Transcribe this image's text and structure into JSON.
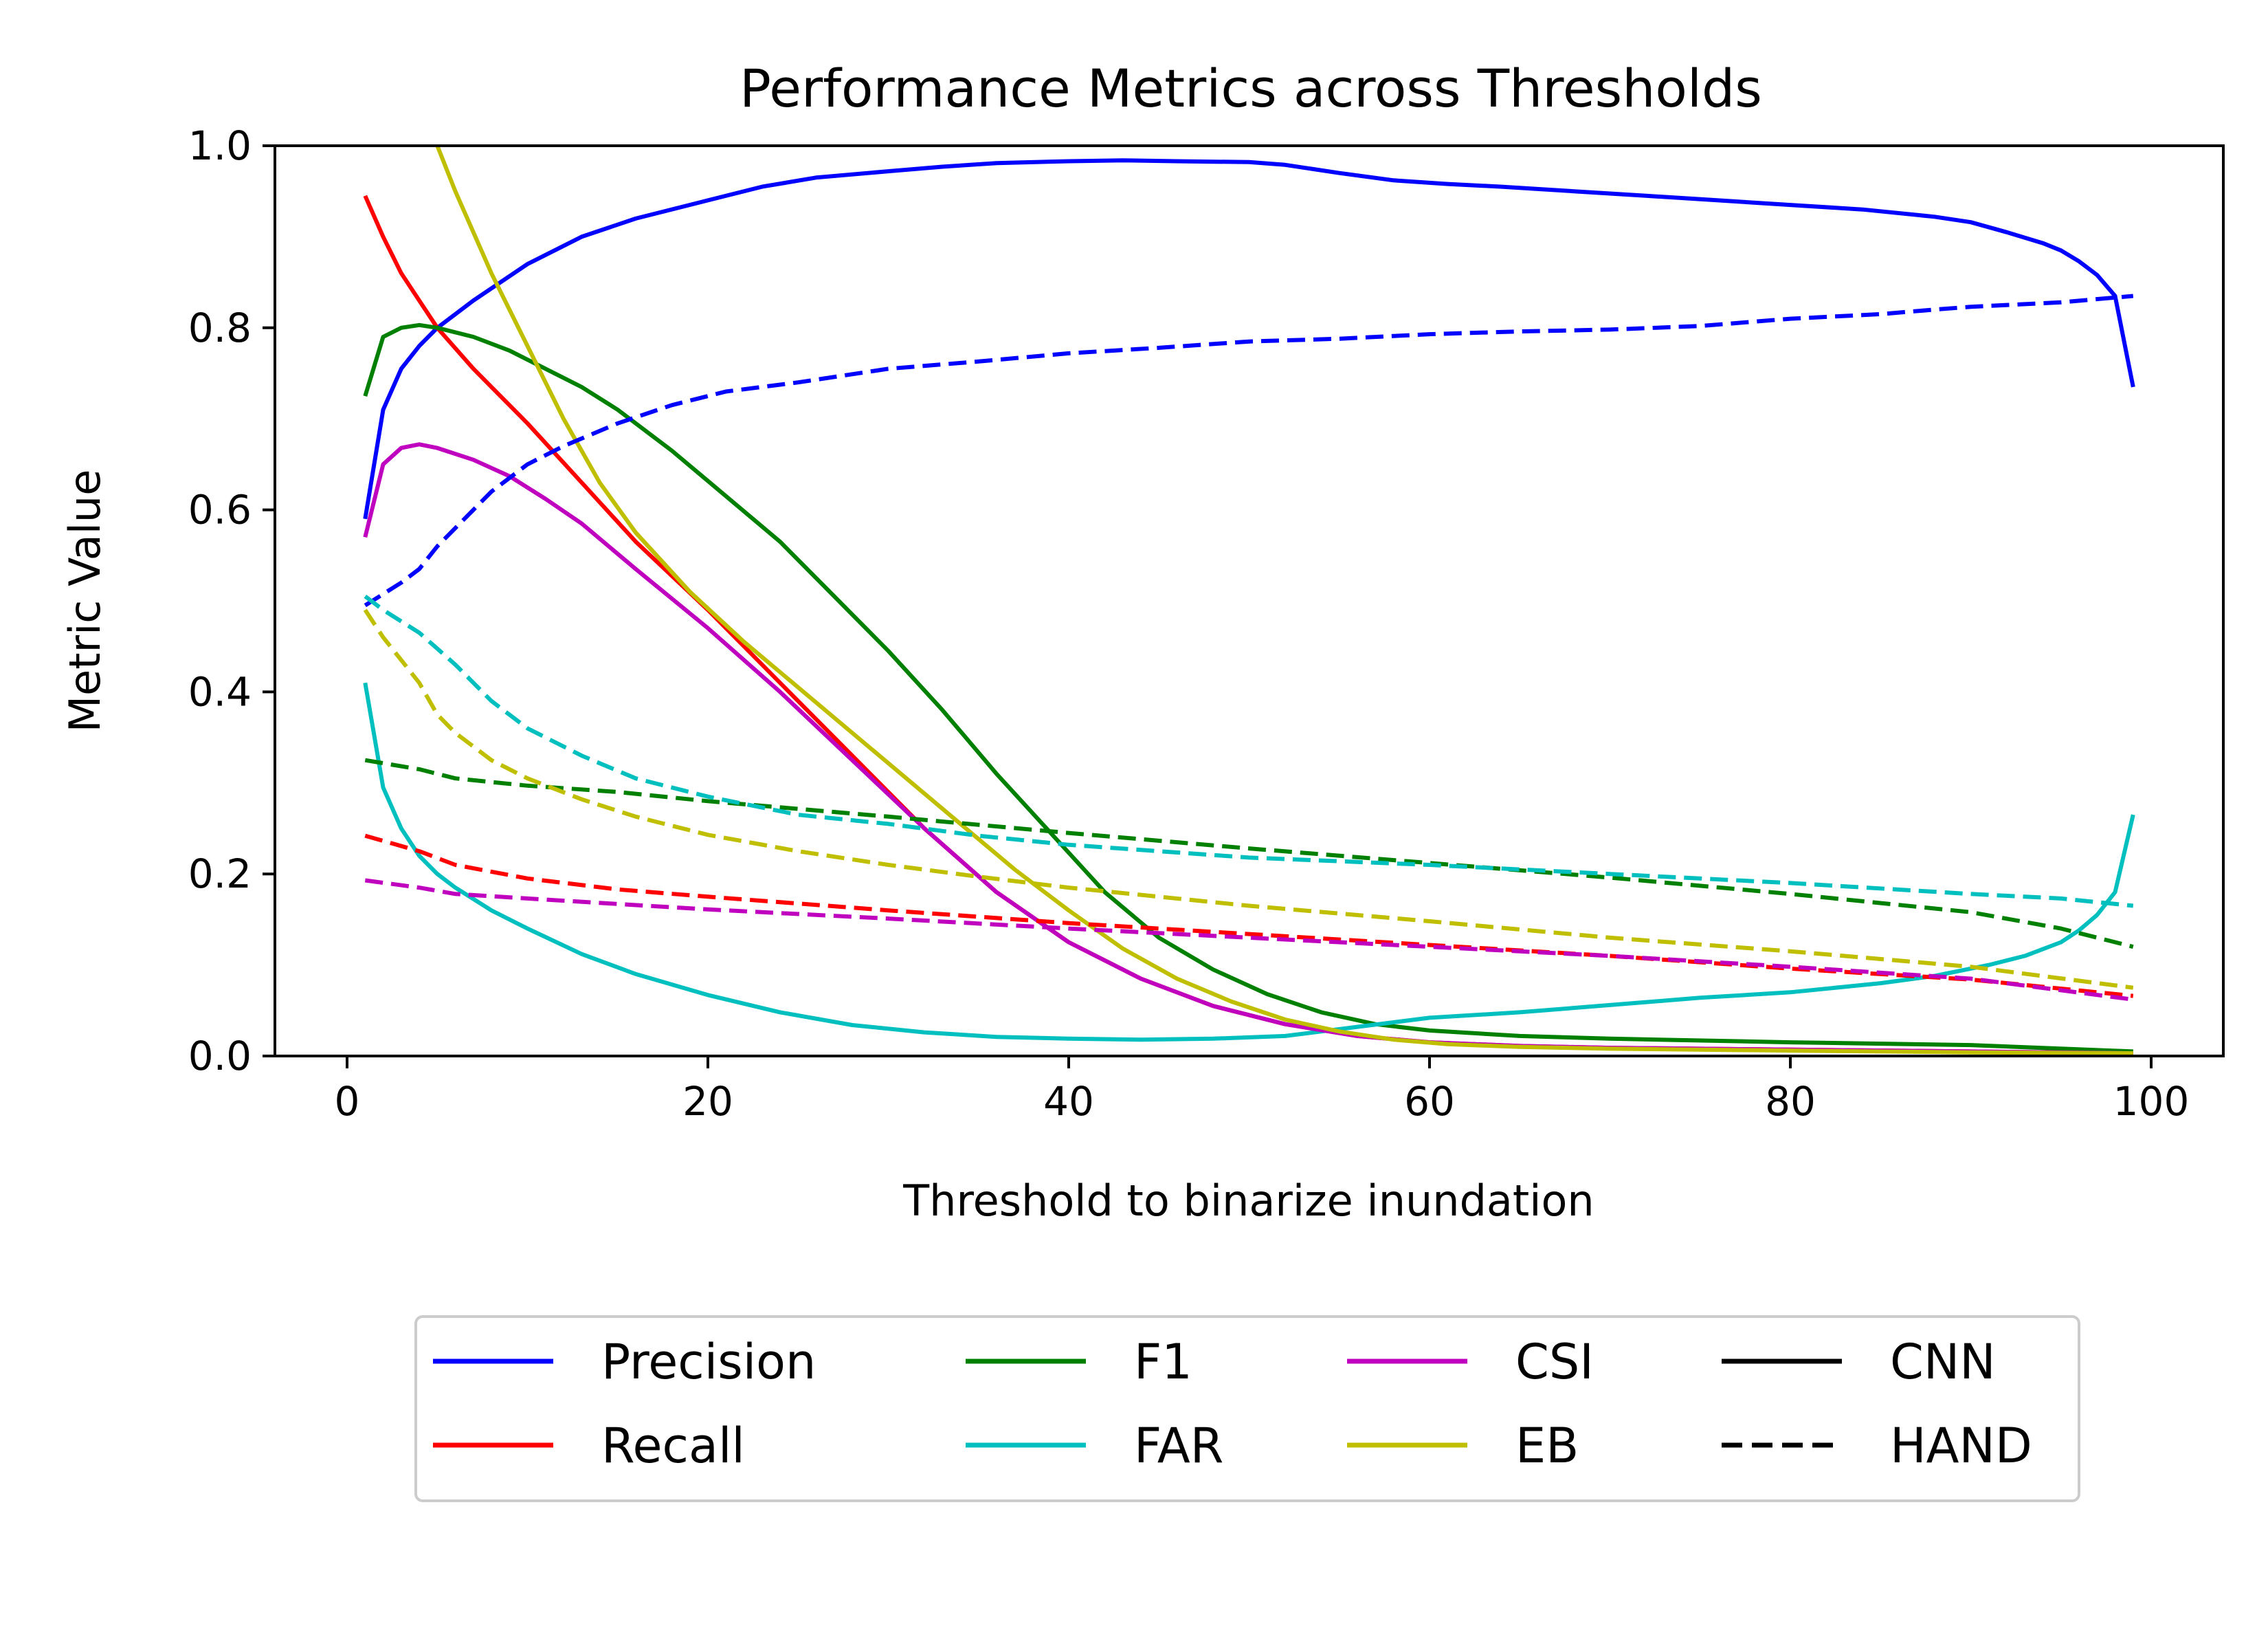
{
  "chart_data": {
    "type": "line",
    "title": "Performance Metrics across Thresholds",
    "xlabel": "Threshold to binarize inundation",
    "ylabel": "Metric Value",
    "xlim": [
      -4,
      104
    ],
    "ylim": [
      0,
      1
    ],
    "grid": false,
    "legend_position": "below",
    "x_ticks": [
      0,
      20,
      40,
      60,
      80,
      100
    ],
    "y_ticks": [
      0.0,
      0.2,
      0.4,
      0.6,
      0.8,
      1.0
    ],
    "x_tick_labels": [
      "0",
      "20",
      "40",
      "60",
      "80",
      "100"
    ],
    "y_tick_labels": [
      "0.0",
      "0.2",
      "0.4",
      "0.6",
      "0.8",
      "1.0"
    ],
    "series": [
      {
        "name": "Precision",
        "model": "CNN",
        "color": "#0000ff",
        "dash": "solid",
        "x": [
          1,
          2,
          3,
          4,
          5,
          7,
          10,
          13,
          16,
          20,
          23,
          26,
          30,
          33,
          36,
          40,
          43,
          46,
          50,
          52,
          55,
          58,
          61,
          64,
          68,
          72,
          76,
          80,
          84,
          88,
          90,
          92,
          94,
          95,
          96,
          97,
          98,
          99
        ],
        "y": [
          0.59,
          0.71,
          0.755,
          0.78,
          0.8,
          0.83,
          0.87,
          0.9,
          0.92,
          0.94,
          0.955,
          0.965,
          0.972,
          0.977,
          0.981,
          0.983,
          0.984,
          0.983,
          0.982,
          0.979,
          0.97,
          0.962,
          0.958,
          0.955,
          0.95,
          0.945,
          0.94,
          0.935,
          0.93,
          0.922,
          0.916,
          0.905,
          0.893,
          0.885,
          0.873,
          0.858,
          0.835,
          0.735
        ]
      },
      {
        "name": "Recall",
        "model": "CNN",
        "color": "#ff0000",
        "dash": "solid",
        "x": [
          1,
          2,
          3,
          4,
          5,
          7,
          10,
          13,
          16,
          20,
          24,
          28,
          32,
          36,
          40,
          44,
          48,
          52,
          56,
          60,
          65,
          70,
          80,
          90,
          99
        ],
        "y": [
          0.945,
          0.9,
          0.86,
          0.83,
          0.8,
          0.755,
          0.695,
          0.63,
          0.565,
          0.49,
          0.41,
          0.33,
          0.25,
          0.18,
          0.125,
          0.085,
          0.055,
          0.035,
          0.022,
          0.015,
          0.011,
          0.009,
          0.007,
          0.005,
          0.003
        ]
      },
      {
        "name": "F1",
        "model": "CNN",
        "color": "#008000",
        "dash": "solid",
        "x": [
          1,
          2,
          3,
          4,
          5,
          7,
          9,
          11,
          13,
          15,
          18,
          21,
          24,
          27,
          30,
          33,
          36,
          39,
          42,
          45,
          48,
          51,
          54,
          57,
          60,
          65,
          70,
          80,
          90,
          99
        ],
        "y": [
          0.725,
          0.79,
          0.8,
          0.803,
          0.8,
          0.79,
          0.775,
          0.755,
          0.735,
          0.71,
          0.665,
          0.615,
          0.565,
          0.505,
          0.445,
          0.38,
          0.31,
          0.245,
          0.18,
          0.13,
          0.095,
          0.068,
          0.048,
          0.035,
          0.028,
          0.022,
          0.019,
          0.015,
          0.012,
          0.005
        ]
      },
      {
        "name": "FAR",
        "model": "CNN",
        "color": "#00bfbf",
        "dash": "solid",
        "x": [
          1,
          2,
          3,
          4,
          5,
          6,
          8,
          10,
          13,
          16,
          20,
          24,
          28,
          32,
          36,
          40,
          44,
          48,
          52,
          56,
          60,
          65,
          70,
          75,
          80,
          85,
          88,
          91,
          93,
          95,
          96,
          97,
          98,
          99
        ],
        "y": [
          0.41,
          0.295,
          0.25,
          0.22,
          0.2,
          0.185,
          0.16,
          0.14,
          0.112,
          0.09,
          0.067,
          0.048,
          0.034,
          0.026,
          0.021,
          0.019,
          0.018,
          0.019,
          0.022,
          0.032,
          0.042,
          0.048,
          0.056,
          0.064,
          0.07,
          0.08,
          0.088,
          0.1,
          0.11,
          0.125,
          0.138,
          0.155,
          0.18,
          0.265
        ]
      },
      {
        "name": "CSI",
        "model": "CNN",
        "color": "#bf00bf",
        "dash": "solid",
        "x": [
          1,
          2,
          3,
          4,
          5,
          7,
          9,
          11,
          13,
          16,
          20,
          24,
          28,
          32,
          36,
          40,
          44,
          48,
          52,
          56,
          60,
          65,
          70,
          80,
          90,
          99
        ],
        "y": [
          0.57,
          0.65,
          0.668,
          0.672,
          0.668,
          0.655,
          0.637,
          0.612,
          0.585,
          0.535,
          0.47,
          0.4,
          0.325,
          0.25,
          0.18,
          0.125,
          0.085,
          0.055,
          0.035,
          0.022,
          0.015,
          0.011,
          0.009,
          0.007,
          0.005,
          0.003
        ]
      },
      {
        "name": "EB",
        "model": "CNN",
        "color": "#bfbf00",
        "dash": "solid",
        "x": [
          5,
          6,
          8,
          10,
          12,
          14,
          16,
          19,
          22,
          25,
          28,
          31,
          34,
          37,
          40,
          43,
          46,
          49,
          52,
          55,
          58,
          61,
          65,
          70,
          80,
          90,
          99
        ],
        "y": [
          1.0,
          0.95,
          0.86,
          0.78,
          0.7,
          0.63,
          0.575,
          0.51,
          0.455,
          0.405,
          0.355,
          0.305,
          0.255,
          0.205,
          0.16,
          0.118,
          0.085,
          0.06,
          0.04,
          0.027,
          0.018,
          0.013,
          0.01,
          0.008,
          0.006,
          0.004,
          0.003
        ]
      },
      {
        "name": "Precision",
        "model": "HAND",
        "color": "#0000ff",
        "dash": "dashed",
        "x": [
          1,
          3,
          4,
          5,
          6,
          8,
          10,
          12,
          15,
          18,
          21,
          25,
          30,
          35,
          40,
          45,
          50,
          55,
          60,
          65,
          70,
          75,
          80,
          85,
          88,
          90,
          95,
          99
        ],
        "y": [
          0.495,
          0.52,
          0.535,
          0.56,
          0.58,
          0.62,
          0.65,
          0.67,
          0.695,
          0.715,
          0.73,
          0.74,
          0.755,
          0.763,
          0.772,
          0.778,
          0.785,
          0.788,
          0.793,
          0.796,
          0.798,
          0.802,
          0.81,
          0.815,
          0.82,
          0.823,
          0.828,
          0.835
        ]
      },
      {
        "name": "Recall",
        "model": "HAND",
        "color": "#ff0000",
        "dash": "dashed",
        "x": [
          1,
          4,
          6,
          10,
          15,
          20,
          30,
          40,
          50,
          60,
          70,
          80,
          90,
          99
        ],
        "y": [
          0.242,
          0.225,
          0.21,
          0.195,
          0.183,
          0.175,
          0.16,
          0.146,
          0.134,
          0.122,
          0.11,
          0.096,
          0.084,
          0.066
        ]
      },
      {
        "name": "F1",
        "model": "HAND",
        "color": "#008000",
        "dash": "dashed",
        "x": [
          1,
          4,
          6,
          10,
          15,
          20,
          30,
          40,
          50,
          60,
          70,
          80,
          90,
          95,
          99
        ],
        "y": [
          0.325,
          0.315,
          0.305,
          0.297,
          0.29,
          0.28,
          0.263,
          0.245,
          0.228,
          0.212,
          0.196,
          0.178,
          0.158,
          0.14,
          0.12
        ]
      },
      {
        "name": "FAR",
        "model": "HAND",
        "color": "#00bfbf",
        "dash": "dashed",
        "x": [
          1,
          2,
          4,
          6,
          8,
          10,
          13,
          16,
          20,
          25,
          30,
          35,
          40,
          50,
          60,
          70,
          80,
          90,
          95,
          99
        ],
        "y": [
          0.505,
          0.49,
          0.465,
          0.43,
          0.39,
          0.36,
          0.33,
          0.305,
          0.285,
          0.265,
          0.255,
          0.242,
          0.232,
          0.218,
          0.21,
          0.2,
          0.19,
          0.178,
          0.173,
          0.165
        ]
      },
      {
        "name": "CSI",
        "model": "HAND",
        "color": "#bf00bf",
        "dash": "dashed",
        "x": [
          1,
          4,
          6,
          10,
          15,
          20,
          30,
          40,
          50,
          60,
          70,
          80,
          90,
          99
        ],
        "y": [
          0.193,
          0.185,
          0.178,
          0.173,
          0.167,
          0.161,
          0.151,
          0.14,
          0.13,
          0.12,
          0.11,
          0.098,
          0.085,
          0.062
        ]
      },
      {
        "name": "EB",
        "model": "HAND",
        "color": "#bfbf00",
        "dash": "dashed",
        "x": [
          1,
          2,
          3,
          4,
          5,
          6,
          8,
          10,
          13,
          16,
          20,
          25,
          30,
          35,
          40,
          50,
          60,
          70,
          80,
          90,
          99
        ],
        "y": [
          0.49,
          0.46,
          0.435,
          0.41,
          0.375,
          0.355,
          0.325,
          0.305,
          0.282,
          0.263,
          0.243,
          0.225,
          0.21,
          0.197,
          0.185,
          0.165,
          0.148,
          0.13,
          0.115,
          0.098,
          0.075
        ]
      }
    ],
    "legend": [
      {
        "label": "Precision",
        "color": "#0000ff",
        "dash": "solid"
      },
      {
        "label": "Recall",
        "color": "#ff0000",
        "dash": "solid"
      },
      {
        "label": "F1",
        "color": "#008000",
        "dash": "solid"
      },
      {
        "label": "FAR",
        "color": "#00bfbf",
        "dash": "solid"
      },
      {
        "label": "CSI",
        "color": "#bf00bf",
        "dash": "solid"
      },
      {
        "label": "EB",
        "color": "#bfbf00",
        "dash": "solid"
      },
      {
        "label": "CNN",
        "color": "#000000",
        "dash": "solid"
      },
      {
        "label": "HAND",
        "color": "#000000",
        "dash": "dashed"
      }
    ]
  }
}
